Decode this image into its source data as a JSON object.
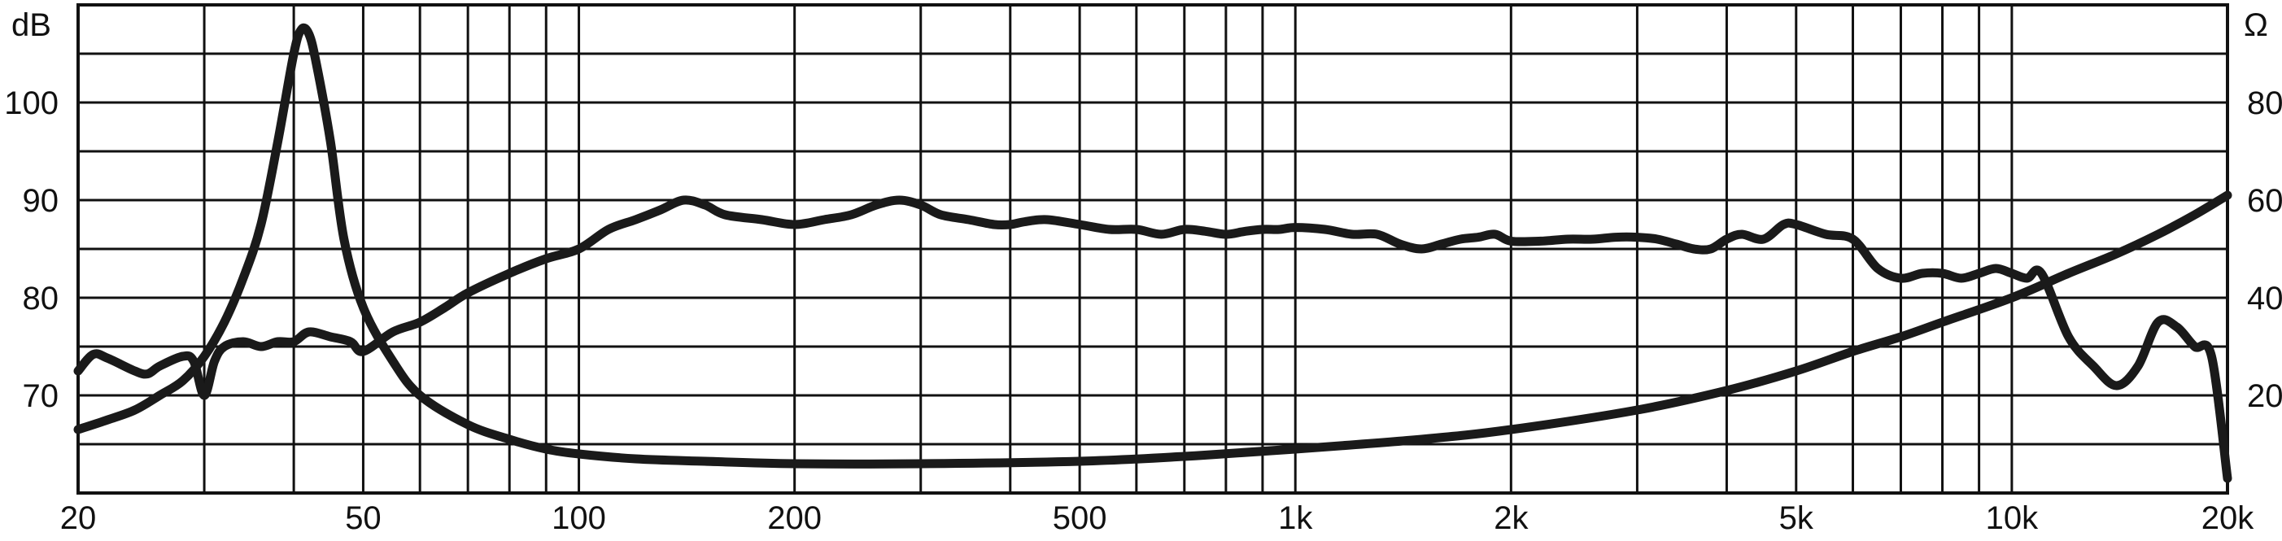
{
  "chart_data": {
    "type": "line",
    "x_scale": "log",
    "xlim": [
      20,
      20000
    ],
    "y_left": {
      "label": "dB",
      "lim": [
        60,
        110
      ],
      "ticks": [
        70,
        80,
        90,
        100
      ]
    },
    "y_right": {
      "label": "Ω",
      "lim": [
        0,
        100
      ],
      "ticks": [
        20,
        40,
        60,
        80
      ]
    },
    "x_ticks": [
      {
        "value": 20,
        "label": "20"
      },
      {
        "value": 50,
        "label": "50"
      },
      {
        "value": 100,
        "label": "100"
      },
      {
        "value": 200,
        "label": "200"
      },
      {
        "value": 500,
        "label": "500"
      },
      {
        "value": 1000,
        "label": "1k"
      },
      {
        "value": 2000,
        "label": "2k"
      },
      {
        "value": 5000,
        "label": "5k"
      },
      {
        "value": 10000,
        "label": "10k"
      },
      {
        "value": 20000,
        "label": "20k"
      }
    ],
    "grid": true,
    "series": [
      {
        "axis": "left",
        "x": [
          20,
          21,
          22,
          24,
          25,
          26,
          28,
          29,
          30,
          31,
          32,
          34,
          36,
          38,
          40,
          42,
          45,
          48,
          50,
          55,
          60,
          65,
          70,
          80,
          90,
          100,
          110,
          120,
          130,
          140,
          150,
          160,
          180,
          200,
          220,
          240,
          260,
          280,
          300,
          320,
          350,
          380,
          400,
          420,
          450,
          500,
          550,
          600,
          650,
          700,
          750,
          800,
          850,
          900,
          950,
          1000,
          1100,
          1200,
          1300,
          1400,
          1500,
          1600,
          1700,
          1800,
          1900,
          2000,
          2200,
          2400,
          2600,
          2800,
          3000,
          3200,
          3400,
          3600,
          3800,
          4000,
          4200,
          4500,
          4800,
          5000,
          5500,
          6000,
          6500,
          7000,
          7500,
          8000,
          8500,
          9000,
          9500,
          10000,
          10500,
          11000,
          12000,
          13000,
          14000,
          15000,
          16000,
          17000,
          18000,
          19000,
          20000
        ],
        "y": [
          72.5,
          74.2,
          73.8,
          72.5,
          72.2,
          73.0,
          74.0,
          73.5,
          70.0,
          73.5,
          75.0,
          75.5,
          75.0,
          75.5,
          75.5,
          76.5,
          76.0,
          75.5,
          74.5,
          76.5,
          77.5,
          79.0,
          80.5,
          82.5,
          84.0,
          85.0,
          87.0,
          88.0,
          89.0,
          90.0,
          89.5,
          88.5,
          88.0,
          87.5,
          88.0,
          88.5,
          89.5,
          90.0,
          89.5,
          88.5,
          88.0,
          87.5,
          87.5,
          87.8,
          88.0,
          87.5,
          87.0,
          87.0,
          86.5,
          87.0,
          86.8,
          86.5,
          86.8,
          87.0,
          87.0,
          87.2,
          87.0,
          86.5,
          86.5,
          85.5,
          85.0,
          85.5,
          86.0,
          86.2,
          86.5,
          85.8,
          85.8,
          86.0,
          86.0,
          86.2,
          86.2,
          86.0,
          85.5,
          85.0,
          85.0,
          86.0,
          86.5,
          86.0,
          87.5,
          87.5,
          86.5,
          86.0,
          83.0,
          82.0,
          82.5,
          82.5,
          82.0,
          82.5,
          83.0,
          82.5,
          82.0,
          82.5,
          76.0,
          73.0,
          71.0,
          73.0,
          77.5,
          77.0,
          75.0,
          74.0,
          61.5
        ]
      },
      {
        "axis": "right",
        "x": [
          20,
          22,
          24,
          26,
          28,
          30,
          32,
          34,
          36,
          38,
          40,
          41,
          42,
          43,
          45,
          47,
          50,
          55,
          60,
          70,
          80,
          90,
          100,
          120,
          150,
          200,
          300,
          500,
          700,
          1000,
          1500,
          2000,
          3000,
          4000,
          5000,
          6000,
          7000,
          8000,
          10000,
          12000,
          14000,
          16000,
          18000,
          20000
        ],
        "y": [
          13,
          15,
          17,
          20,
          23,
          28,
          35,
          44,
          55,
          72,
          90,
          95,
          94,
          88,
          72,
          52,
          38,
          27,
          20,
          14,
          11,
          9,
          8,
          7,
          6.5,
          6,
          6,
          6.5,
          7.5,
          9,
          11,
          13,
          17,
          21,
          25,
          29,
          32,
          35,
          40,
          45,
          49,
          53,
          57,
          61
        ]
      }
    ]
  }
}
